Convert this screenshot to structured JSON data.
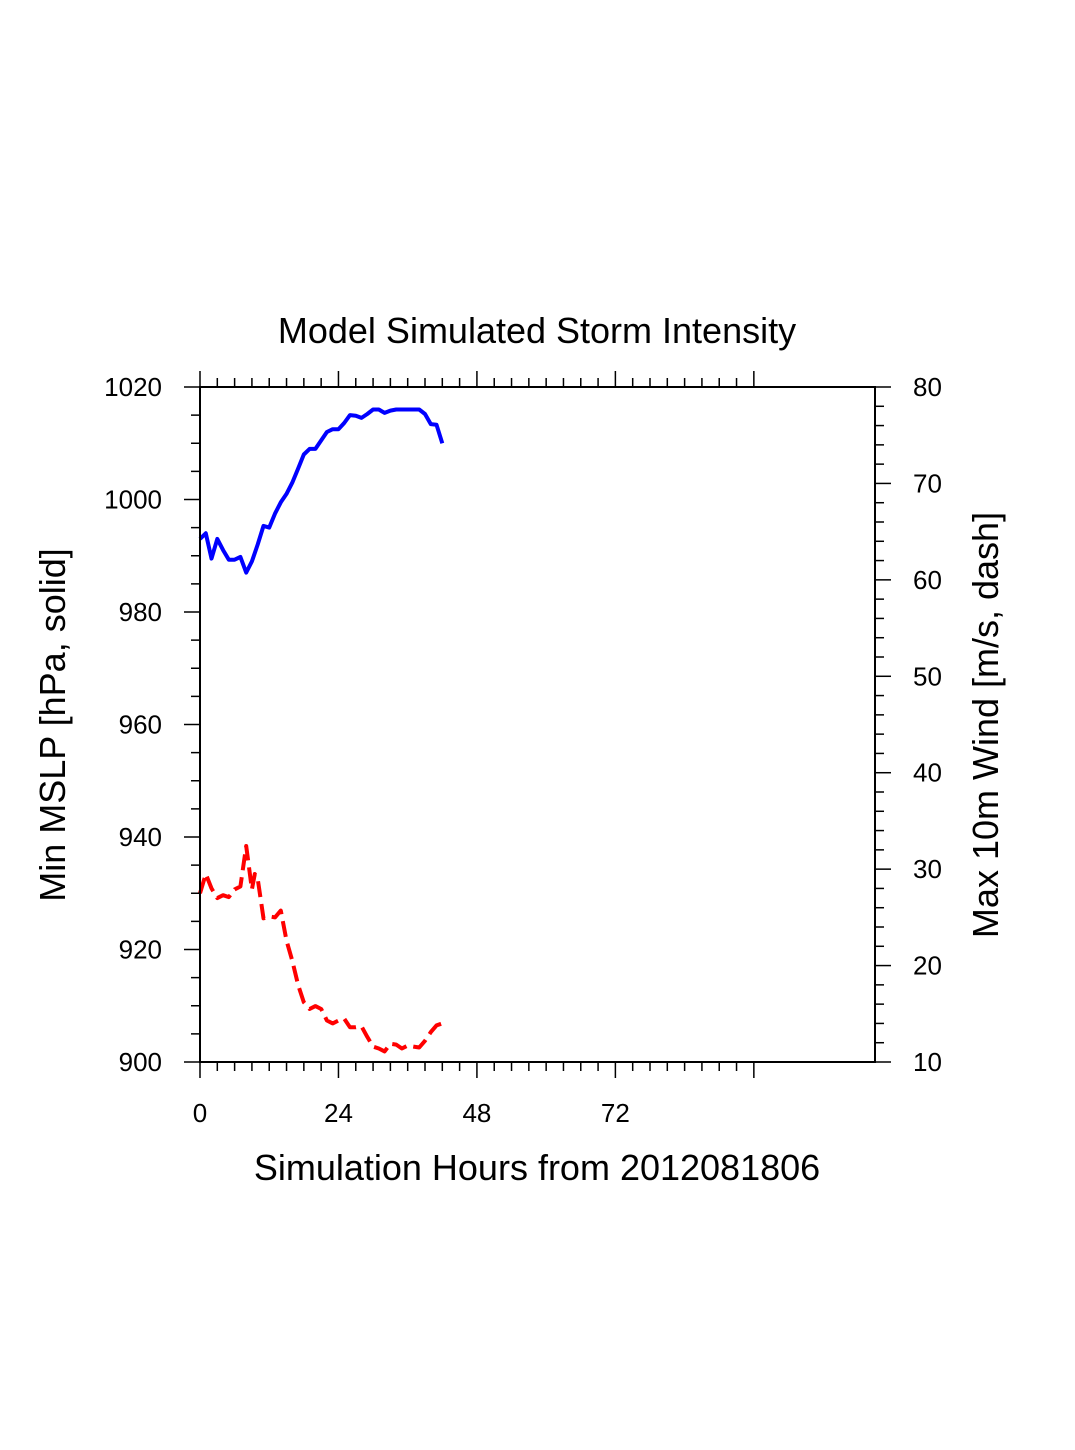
{
  "chart_data": {
    "type": "line",
    "title": "Model Simulated Storm Intensity",
    "xlabel": "Simulation Hours from 2012081806",
    "ylabel": "Min MSLP  [hPa, solid]",
    "y2label": "Max 10m Wind  [m/s, dash]",
    "xlim": [
      0,
      117
    ],
    "ylim": [
      900,
      1020
    ],
    "y2lim": [
      10,
      80
    ],
    "xticks": [
      0,
      24,
      48,
      72
    ],
    "xtick_labels": [
      "0",
      "24",
      "48",
      "72"
    ],
    "yticks": [
      900,
      920,
      940,
      960,
      980,
      1000,
      1020
    ],
    "ytick_labels": [
      "900",
      "920",
      "940",
      "960",
      "980",
      "1000",
      "1020"
    ],
    "y2ticks": [
      10,
      20,
      30,
      40,
      50,
      60,
      70,
      80
    ],
    "y2tick_labels": [
      "10",
      "20",
      "30",
      "40",
      "50",
      "60",
      "70",
      "80"
    ],
    "grid": false,
    "series": [
      {
        "name": "Min MSLP",
        "axis": "left",
        "style": "solid",
        "color": "#0000ff",
        "x": [
          0,
          1,
          2,
          3,
          4,
          5,
          6,
          7,
          8,
          9,
          10,
          11,
          12,
          13,
          14,
          15,
          16,
          17,
          18,
          19,
          20,
          21,
          22,
          23,
          24,
          25,
          26,
          27,
          28,
          29,
          30,
          31,
          32,
          33,
          34,
          35,
          36,
          37,
          38,
          39,
          40,
          41,
          42
        ],
        "values": [
          993,
          994,
          989.5,
          993,
          991,
          989.3,
          989.3,
          989.8,
          987,
          989,
          992,
          995.3,
          995,
          997.5,
          999.5,
          1001,
          1003,
          1005.5,
          1008,
          1009,
          1009,
          1010.5,
          1012,
          1012.5,
          1012.5,
          1013.6,
          1015,
          1014.9,
          1014.5,
          1015.2,
          1016,
          1016,
          1015.4,
          1015.8,
          1016,
          1016,
          1016,
          1016,
          1016,
          1015.2,
          1013.4,
          1013.3,
          1010
        ]
      },
      {
        "name": "Max 10m Wind",
        "axis": "right",
        "style": "dashed",
        "color": "#ff0000",
        "x": [
          0,
          1,
          2,
          3,
          4,
          5,
          6,
          7,
          8,
          8.5,
          9,
          9.5,
          10,
          11,
          12,
          13,
          14,
          15,
          16,
          17,
          18,
          19,
          20,
          21,
          22,
          23,
          24,
          25,
          26,
          27,
          28,
          29,
          30,
          31,
          32,
          33,
          34,
          35,
          36,
          37,
          38,
          39,
          40,
          41,
          42
        ],
        "values": [
          27.5,
          29.5,
          28,
          27,
          27.3,
          27.1,
          27.9,
          28.2,
          32.4,
          30.2,
          27.9,
          29.5,
          29,
          24.9,
          25.1,
          25,
          25.7,
          22.6,
          20.5,
          18,
          16.2,
          15.5,
          15.8,
          15.5,
          14.3,
          14,
          14.3,
          14.5,
          13.6,
          13.6,
          13.7,
          12.6,
          11.6,
          11.4,
          11.1,
          11.9,
          11.8,
          11.4,
          11.7,
          11.6,
          11.5,
          12.2,
          13.1,
          13.8,
          14
        ]
      }
    ]
  }
}
